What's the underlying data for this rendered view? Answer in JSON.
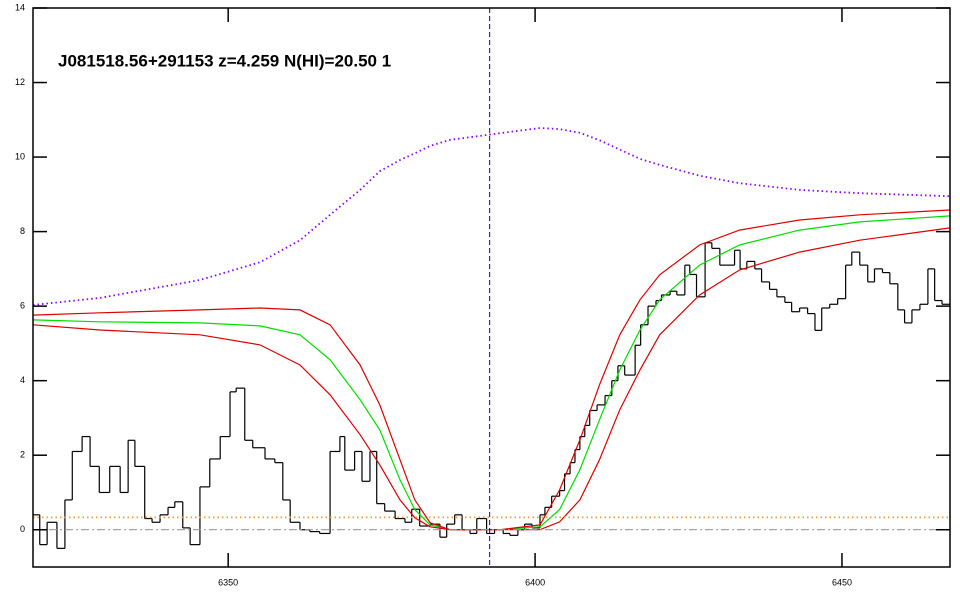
{
  "chart_data": {
    "type": "line",
    "title": "J081518.56+291153 z=4.259 N(HI)=20.50 1",
    "xlim": [
      6318.2,
      6467.6
    ],
    "ylim": [
      -1,
      14
    ],
    "xticks": [
      6350,
      6400,
      6450
    ],
    "yticks": [
      0,
      2,
      4,
      6,
      8,
      10,
      12,
      14
    ],
    "spectrum": {
      "color": "#000000",
      "bins": [
        6318.2,
        6319.3,
        6320.5,
        6322.1,
        6323.4,
        6324.6,
        6326.2,
        6327.5,
        6329.0,
        6330.7,
        6332.4,
        6333.7,
        6334.8,
        6336.4,
        6337.6,
        6338.9,
        6340.2,
        6341.3,
        6342.6,
        6343.8,
        6345.4,
        6347.0,
        6348.7,
        6350.3,
        6351.3,
        6352.7,
        6354.0,
        6356.0,
        6357.6,
        6358.9,
        6360.1,
        6361.7,
        6363.3,
        6364.9,
        6366.6,
        6368.2,
        6369.0,
        6370.6,
        6371.8,
        6373.1,
        6374.2,
        6375.5,
        6377.2,
        6378.8,
        6379.9,
        6381.2,
        6382.9,
        6384.5,
        6385.6,
        6386.9,
        6388.1,
        6389.4,
        6390.5,
        6392.1,
        6393.4,
        6394.8,
        6395.9,
        6397.2,
        6398.3,
        6399.5,
        6400.8,
        6401.6,
        6402.7,
        6404.0,
        6404.8,
        6405.7,
        6406.5,
        6407.3,
        6408.1,
        6408.9,
        6410.1,
        6411.4,
        6412.5,
        6413.5,
        6414.6,
        6416.3,
        6417.2,
        6418.4,
        6419.7,
        6420.6,
        6422.0,
        6423.1,
        6424.4,
        6425.2,
        6426.3,
        6427.7,
        6428.8,
        6430.1,
        6431.2,
        6432.5,
        6433.4,
        6434.5,
        6435.8,
        6436.9,
        6438.2,
        6439.4,
        6440.7,
        6441.8,
        6443.1,
        6444.4,
        6445.6,
        6446.7,
        6448.0,
        6449.3,
        6450.6,
        6451.6,
        6452.9,
        6454.2,
        6455.3,
        6456.6,
        6457.8,
        6459.1,
        6460.2,
        6461.4,
        6462.7,
        6464.0,
        6465.1,
        6466.3,
        6467.6
      ],
      "values": [
        0.4,
        -0.4,
        0.2,
        -0.5,
        0.8,
        2.1,
        2.5,
        1.7,
        1.0,
        1.7,
        1.0,
        2.4,
        1.7,
        0.3,
        0.2,
        0.4,
        0.6,
        0.75,
        0.05,
        -0.4,
        1.15,
        1.9,
        2.5,
        3.7,
        3.8,
        2.4,
        2.2,
        1.9,
        1.8,
        0.8,
        0.2,
        0,
        -0.05,
        -0.1,
        2.1,
        2.5,
        1.6,
        2.1,
        1.3,
        2.1,
        0.7,
        0.5,
        0.3,
        0.2,
        0.55,
        0.1,
        0.15,
        -0.2,
        0.15,
        0.4,
        0,
        -0.1,
        0.3,
        -0.1,
        0,
        -0.1,
        -0.15,
        0,
        0.15,
        0.05,
        0.4,
        0.6,
        0.9,
        1.05,
        1.5,
        1.8,
        2.15,
        2.5,
        2.8,
        3.2,
        3.35,
        3.6,
        4.0,
        4.4,
        4.15,
        4.95,
        5.5,
        6.0,
        6.15,
        6.3,
        6.4,
        6.3,
        7.1,
        6.85,
        6.25,
        7.7,
        7.55,
        7.1,
        7.1,
        7.5,
        7.0,
        7.2,
        7.0,
        6.65,
        6.45,
        6.25,
        6.1,
        5.85,
        5.95,
        5.8,
        5.35,
        5.95,
        6.05,
        6.2,
        7.1,
        7.45,
        7.1,
        6.65,
        7.0,
        6.9,
        6.6,
        5.9,
        5.55,
        5.9,
        6.05,
        7.0,
        6.15,
        6.05
      ]
    },
    "x": [
      6318.2,
      6329.1,
      6345.4,
      6355.2,
      6361.7,
      6366.6,
      6371.5,
      6374.7,
      6378.0,
      6380.4,
      6382.9,
      6386.1,
      6394.3,
      6400.8,
      6404.0,
      6407.3,
      6410.5,
      6413.8,
      6417.1,
      6420.3,
      6426.8,
      6433.3,
      6443.1,
      6452.9,
      6467.6
    ],
    "series": [
      {
        "color": "#00dd00",
        "style": "solid",
        "values": [
          5.63,
          5.58,
          5.55,
          5.47,
          5.23,
          4.56,
          3.49,
          2.68,
          1.34,
          0.54,
          0.13,
          0,
          0,
          0.08,
          0.54,
          1.61,
          2.95,
          4.29,
          5.36,
          6.17,
          7.1,
          7.64,
          8.04,
          8.26,
          8.42
        ]
      },
      {
        "color": "#dd0000",
        "style": "solid",
        "values": [
          5.76,
          5.82,
          5.9,
          5.95,
          5.9,
          5.5,
          4.42,
          3.35,
          1.88,
          0.8,
          0.19,
          0,
          0,
          0.13,
          1.07,
          2.41,
          3.89,
          5.23,
          6.17,
          6.84,
          7.64,
          8.04,
          8.31,
          8.45,
          8.58
        ]
      },
      {
        "color": "#dd0000",
        "style": "solid",
        "values": [
          5.5,
          5.36,
          5.23,
          4.96,
          4.42,
          3.62,
          2.55,
          1.74,
          0.8,
          0.32,
          0.08,
          0,
          0,
          0,
          0.21,
          0.8,
          1.88,
          3.22,
          4.29,
          5.23,
          6.3,
          6.97,
          7.45,
          7.77,
          8.1
        ]
      },
      {
        "color": "#8a00ff",
        "style": "dotted",
        "values": [
          6.03,
          6.22,
          6.7,
          7.18,
          7.77,
          8.45,
          9.12,
          9.62,
          9.92,
          10.1,
          10.3,
          10.46,
          10.64,
          10.78,
          10.75,
          10.65,
          10.45,
          10.2,
          9.95,
          9.79,
          9.5,
          9.3,
          9.12,
          9.03,
          8.95
        ]
      },
      {
        "color": "#e0a040",
        "style": "dotted",
        "values": [
          0.33,
          0.33,
          0.33,
          0.33,
          0.33,
          0.33,
          0.33,
          0.33,
          0.33,
          0.33,
          0.33,
          0.33,
          0.33,
          0.33,
          0.33,
          0.33,
          0.33,
          0.33,
          0.33,
          0.33,
          0.33,
          0.33,
          0.33,
          0.33,
          0.33
        ]
      },
      {
        "color": "#999999",
        "style": "dashdot",
        "values": [
          0,
          0,
          0,
          0,
          0,
          0,
          0,
          0,
          0,
          0,
          0,
          0,
          0,
          0,
          0,
          0,
          0,
          0,
          0,
          0,
          0,
          0,
          0,
          0,
          0
        ]
      }
    ],
    "vline": {
      "x": 6392.6,
      "color": "#0000cc"
    }
  }
}
